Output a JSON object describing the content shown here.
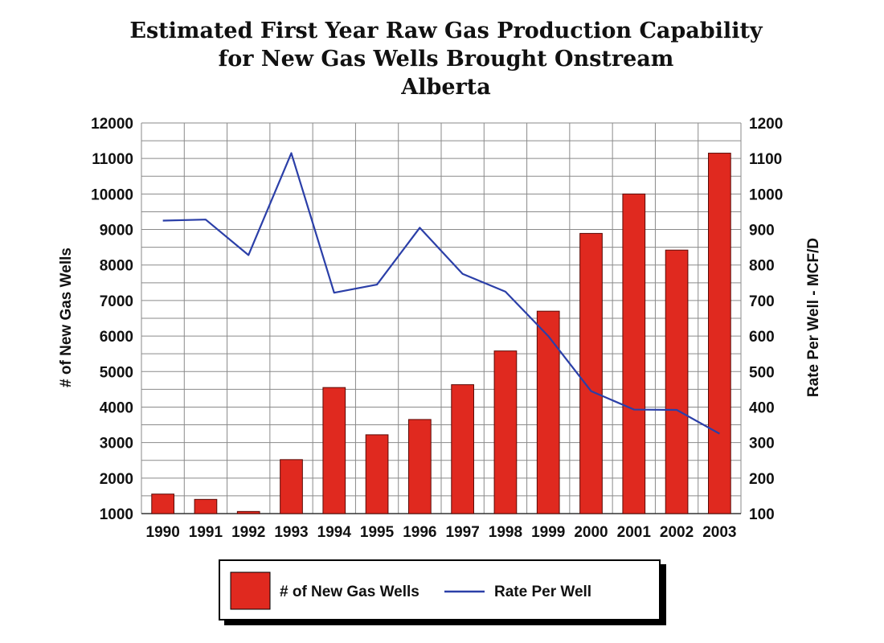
{
  "chart_data": {
    "type": "bar",
    "title": [
      "Estimated First Year Raw Gas Production Capability",
      "for New Gas Wells Brought Onstream",
      "Alberta"
    ],
    "categories": [
      "1990",
      "1991",
      "1992",
      "1993",
      "1994",
      "1995",
      "1996",
      "1997",
      "1998",
      "1999",
      "2000",
      "2001",
      "2002",
      "2003"
    ],
    "series": [
      {
        "name": "# of New Gas Wells",
        "type": "bar",
        "axis": "left",
        "color": "#e0291f",
        "values": [
          1550,
          1400,
          1060,
          2520,
          4550,
          3220,
          3650,
          4630,
          5580,
          6700,
          8890,
          10000,
          8420,
          11150
        ]
      },
      {
        "name": "Rate Per Well",
        "type": "line",
        "axis": "right",
        "color": "#2b3fa8",
        "values": [
          925,
          928,
          828,
          1115,
          722,
          745,
          905,
          775,
          725,
          600,
          445,
          393,
          392,
          325
        ]
      }
    ],
    "ylabel_left": "# of New Gas Wells",
    "ylabel_right": "Rate Per Well - MCF/D",
    "ylim_left": [
      1000,
      12000
    ],
    "ylim_right": [
      100,
      1200
    ],
    "yticks_left": [
      "1000",
      "2000",
      "3000",
      "4000",
      "5000",
      "6000",
      "7000",
      "8000",
      "9000",
      "10000",
      "11000",
      "12000"
    ],
    "yticks_right": [
      "100",
      "200",
      "300",
      "400",
      "500",
      "600",
      "700",
      "800",
      "900",
      "1000",
      "1100",
      "1200"
    ],
    "grid": true,
    "legend_position": "bottom-center"
  }
}
